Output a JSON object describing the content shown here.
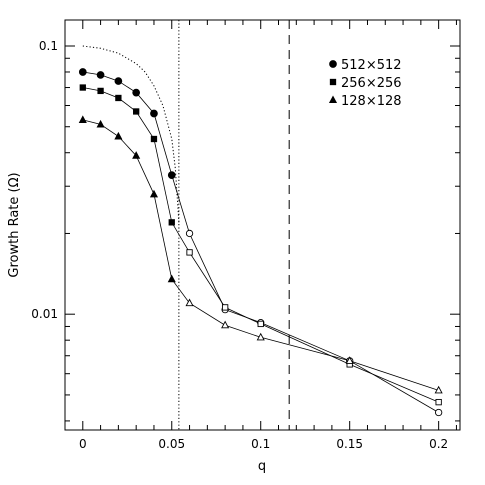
{
  "chart_data": {
    "type": "scatter",
    "xlabel": "q",
    "ylabel": "Growth Rate (Ω)",
    "xlim": [
      -0.01,
      0.212
    ],
    "ylim": [
      0.0037,
      0.125
    ],
    "yscale": "log",
    "grid": false,
    "legend_position": "top-right",
    "x_ticks": [
      0,
      0.05,
      0.1,
      0.15,
      0.2
    ],
    "x_tick_labels": [
      "0",
      "0.05",
      "0.1",
      "0.15",
      "0.2"
    ],
    "y_ticks": [
      0.01,
      0.1
    ],
    "y_tick_labels": [
      "0.01",
      "0.1"
    ],
    "series": [
      {
        "name": "512×512",
        "marker": "circle",
        "x": [
          0,
          0.01,
          0.02,
          0.03,
          0.04,
          0.05,
          0.06,
          0.08,
          0.1,
          0.15,
          0.2
        ],
        "y": [
          0.08,
          0.078,
          0.074,
          0.067,
          0.056,
          0.033,
          0.02,
          0.0104,
          0.0093,
          0.0067,
          0.0043
        ],
        "filled": [
          true,
          true,
          true,
          true,
          true,
          true,
          false,
          false,
          false,
          false,
          false
        ]
      },
      {
        "name": "256×256",
        "marker": "square",
        "x": [
          0,
          0.01,
          0.02,
          0.03,
          0.04,
          0.05,
          0.06,
          0.08,
          0.1,
          0.15,
          0.2
        ],
        "y": [
          0.07,
          0.068,
          0.064,
          0.057,
          0.045,
          0.022,
          0.017,
          0.0106,
          0.0092,
          0.0065,
          0.0047
        ],
        "filled": [
          true,
          true,
          true,
          true,
          true,
          true,
          false,
          false,
          false,
          false,
          false
        ]
      },
      {
        "name": "128×128",
        "marker": "triangle",
        "x": [
          0,
          0.01,
          0.02,
          0.03,
          0.04,
          0.05,
          0.06,
          0.08,
          0.1,
          0.15,
          0.2
        ],
        "y": [
          0.053,
          0.051,
          0.046,
          0.039,
          0.028,
          0.0135,
          0.011,
          0.0091,
          0.0082,
          0.0067,
          0.0052
        ],
        "filled": [
          true,
          true,
          true,
          true,
          true,
          true,
          false,
          false,
          false,
          false,
          false
        ]
      }
    ],
    "reference_curve": {
      "style": "dotted",
      "x": [
        0,
        0.01,
        0.02,
        0.03,
        0.035,
        0.04,
        0.045,
        0.05,
        0.052,
        0.054
      ],
      "y": [
        0.1,
        0.098,
        0.094,
        0.086,
        0.08,
        0.071,
        0.06,
        0.045,
        0.035,
        0.022
      ]
    },
    "vertical_lines": [
      {
        "x": 0.054,
        "style": "dotted"
      },
      {
        "x": 0.116,
        "style": "dashed"
      }
    ]
  }
}
